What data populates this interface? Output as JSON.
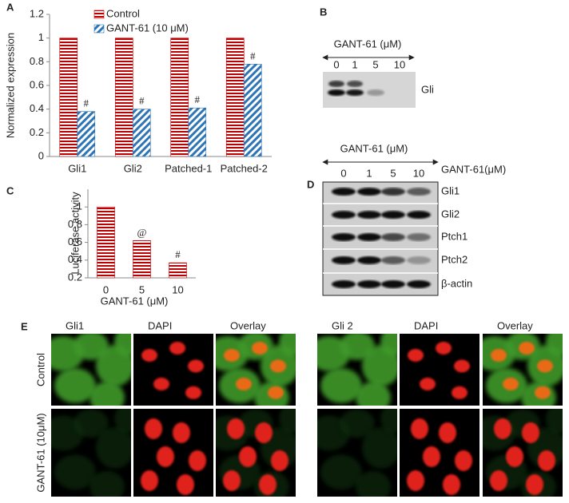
{
  "chart_data": [
    {
      "type": "bar",
      "panel_label": "A",
      "ylabel": "Normalized expression",
      "categories": [
        "Gli1",
        "Gli2",
        "Patched-1",
        "Patched-2"
      ],
      "series": [
        {
          "name": "Control",
          "color": "#c00000",
          "values": [
            1,
            1,
            1,
            1
          ]
        },
        {
          "name": "GANT-61 (10 μM)",
          "color": "#2e75b6",
          "values": [
            0.38,
            0.4,
            0.41,
            0.78
          ]
        }
      ],
      "annotations": [
        "#",
        "#",
        "#",
        "#"
      ],
      "ylim": [
        0,
        1.2
      ],
      "yticks": [
        0,
        0.2,
        0.4,
        0.6,
        0.8,
        1,
        1.2
      ]
    },
    {
      "type": "bar",
      "panel_label": "C",
      "ylabel": "Luciferase activity",
      "xlabel": "GANT-61 (μM)",
      "categories": [
        "0",
        "5",
        "10"
      ],
      "color": "#c00000",
      "values": [
        1,
        0.62,
        0.37
      ],
      "annotations": [
        null,
        "@",
        "#"
      ],
      "ylim": [
        0.2,
        1.2
      ],
      "yticks": [
        0.2,
        0.4,
        0.6,
        0.8,
        1
      ]
    }
  ],
  "blot_b": {
    "panel_label": "B",
    "treatment": "GANT-61 (μM)",
    "doses": [
      "0",
      "1",
      "5",
      "10"
    ],
    "band": "Gli"
  },
  "blot_d": {
    "panel_label": "D",
    "treatment": "GANT-61 (μM)",
    "doses": [
      "0",
      "1",
      "5",
      "10"
    ],
    "side_label": "GANT-61(μM)",
    "bands": [
      "Gli1",
      "Gli2",
      "Ptch1",
      "Ptch2",
      "β-actin"
    ]
  },
  "panel_e": {
    "panel_label": "E",
    "left_columns": [
      "Gli1",
      "DAPI",
      "Overlay"
    ],
    "right_columns": [
      "Gli 2",
      "DAPI",
      "Overlay"
    ],
    "rows": [
      "Control",
      "GANT-61 (10μM)"
    ]
  }
}
